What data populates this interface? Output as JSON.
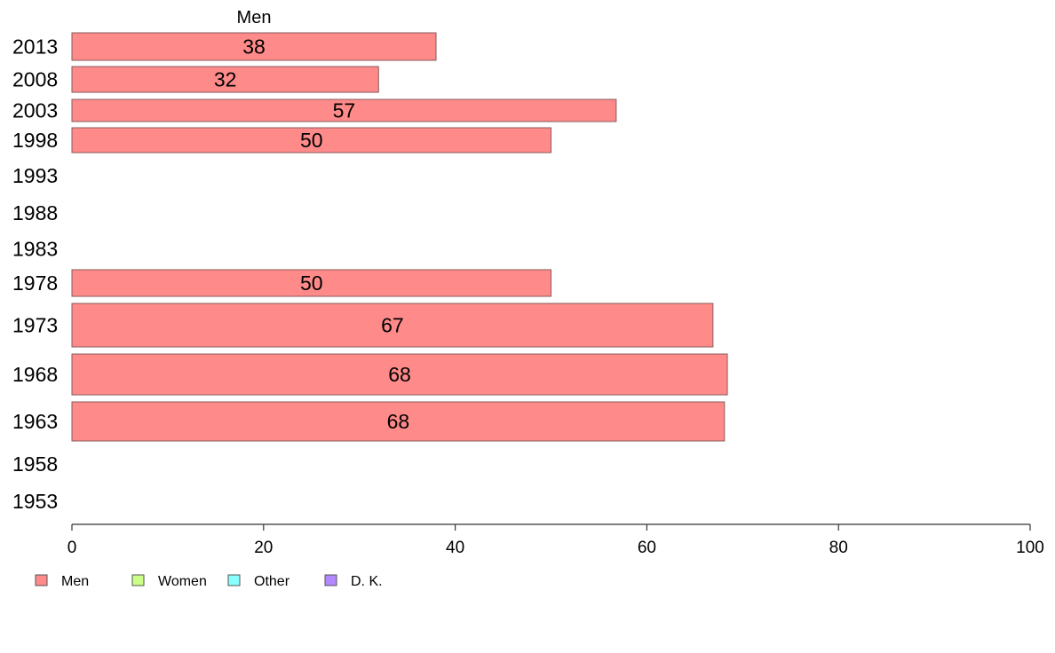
{
  "chart_data": {
    "type": "bar",
    "orientation": "horizontal",
    "column_title": "Men",
    "categories": [
      "2013",
      "2008",
      "2003",
      "1998",
      "1993",
      "1988",
      "1983",
      "1978",
      "1973",
      "1968",
      "1963",
      "1958",
      "1953"
    ],
    "series": [
      {
        "name": "Men",
        "color": "#ff8a8a",
        "values": [
          38,
          32,
          57,
          50,
          null,
          null,
          null,
          50,
          67,
          68,
          68,
          null,
          null
        ],
        "extent": [
          38,
          32,
          56.8,
          50,
          null,
          null,
          null,
          50,
          66.9,
          68.4,
          68.1,
          null,
          null
        ]
      }
    ],
    "xlim": [
      0,
      100
    ],
    "xticks": [
      "0",
      "20",
      "40",
      "60",
      "80",
      "100"
    ],
    "legend": {
      "position": "bottom-left",
      "items": [
        {
          "label": "Men",
          "color": "#ff8a8a"
        },
        {
          "label": "Women",
          "color": "#ccff88"
        },
        {
          "label": "Other",
          "color": "#88ffff"
        },
        {
          "label": "D. K.",
          "color": "#b388ff"
        }
      ]
    },
    "grid": false
  }
}
